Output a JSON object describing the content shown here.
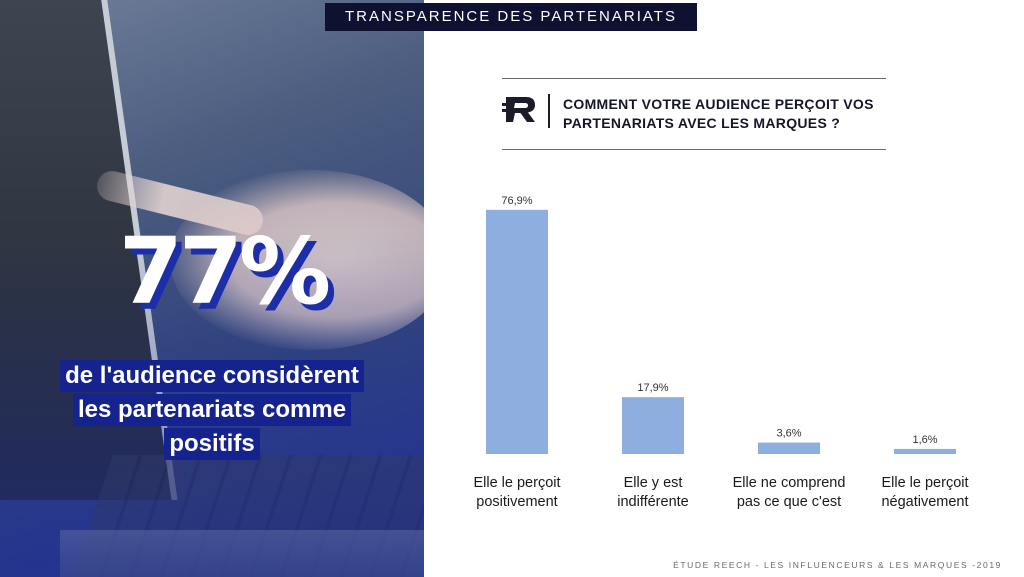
{
  "banner": {
    "title": "TRANSPARENCE DES PARTENARIATS"
  },
  "left_panel": {
    "big_stat": "77%",
    "lines": [
      "de l'audience considèrent",
      "les partenariats comme",
      "positifs"
    ]
  },
  "question": {
    "logo_icon": "reech-logo",
    "text": "COMMENT VOTRE AUDIENCE PERÇOIT VOS PARTENARIATS AVEC LES MARQUES ?"
  },
  "chart_data": {
    "type": "bar",
    "categories": [
      [
        "Elle le perçoit",
        "positivement"
      ],
      [
        "Elle y est",
        "indifférente"
      ],
      [
        "Elle ne comprend",
        "pas ce que c'est"
      ],
      [
        "Elle le perçoit",
        "négativement"
      ]
    ],
    "values": [
      76.9,
      17.9,
      3.6,
      1.6
    ],
    "data_labels": [
      "76,9%",
      "17,9%",
      "3,6%",
      "1,6%"
    ],
    "ylim": [
      0,
      80
    ],
    "bar_color": "#8eaee0",
    "grid": false,
    "title": "",
    "xlabel": "",
    "ylabel": ""
  },
  "footer": {
    "text": "ÉTUDE REECH - LES INFLUENCEURS & LES MARQUES -2019"
  },
  "colors": {
    "accent_navy": "#15238f",
    "banner_bg": "#0e1230"
  }
}
